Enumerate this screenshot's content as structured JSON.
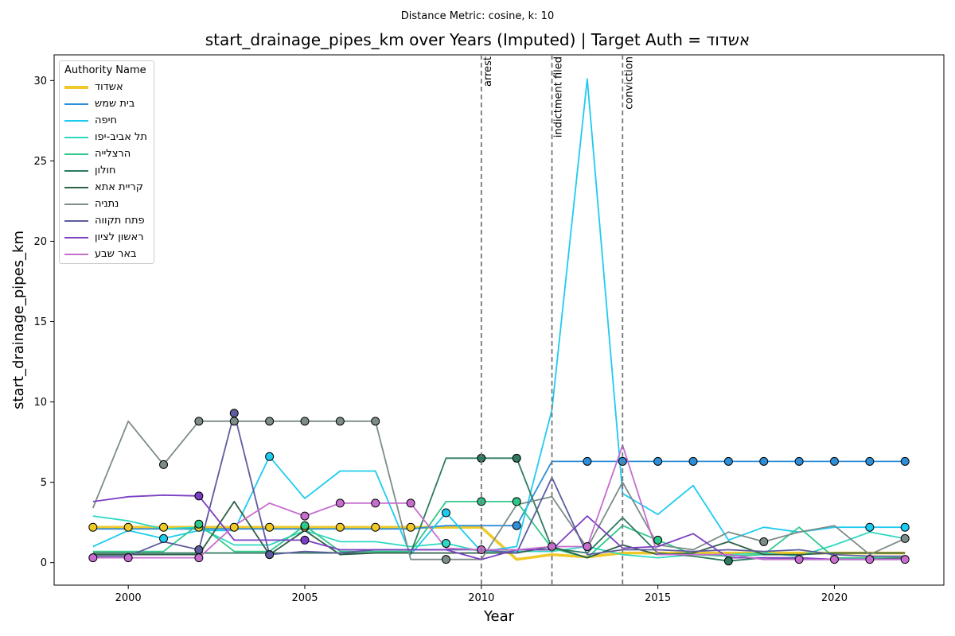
{
  "suptitle": "Distance Metric: cosine, k: 10",
  "title": "start_drainage_pipes_km over Years (Imputed) | Target Auth = אשדוד",
  "legend_title": "Authority Name",
  "chart_data": {
    "type": "line",
    "xlabel": "Year",
    "ylabel": "start_drainage_pipes_km",
    "xlim": [
      1997.9,
      2023.1
    ],
    "ylim": [
      -1.4,
      31.6
    ],
    "xticks": [
      2000,
      2005,
      2010,
      2015,
      2020
    ],
    "yticks": [
      0,
      5,
      10,
      15,
      20,
      25,
      30
    ],
    "grid": false,
    "legend_position": "upper-left",
    "events": [
      {
        "year": 2010,
        "label": "arrest"
      },
      {
        "year": 2012,
        "label": "indictment filed"
      },
      {
        "year": 2014,
        "label": "conviction"
      }
    ],
    "x": [
      1999,
      2000,
      2001,
      2002,
      2003,
      2004,
      2005,
      2006,
      2007,
      2008,
      2009,
      2010,
      2011,
      2012,
      2013,
      2014,
      2015,
      2016,
      2017,
      2018,
      2019,
      2020,
      2021,
      2022
    ],
    "series": [
      {
        "name": "אשדוד",
        "color": "#f0c929",
        "target": true,
        "values": [
          2.2,
          2.2,
          2.2,
          2.2,
          2.2,
          2.2,
          2.2,
          2.2,
          2.2,
          2.2,
          2.2,
          2.2,
          0.2,
          0.5,
          0.35,
          0.6,
          0.6,
          0.6,
          0.6,
          0.6,
          0.6,
          0.6,
          0.6,
          0.6
        ],
        "markers": [
          1999,
          2000,
          2001,
          2002,
          2003,
          2004,
          2005,
          2006,
          2007,
          2008
        ]
      },
      {
        "name": "בית שמש",
        "color": "#2e8fd8",
        "values": [
          2.1,
          2.1,
          2.1,
          2.1,
          2.1,
          2.1,
          2.1,
          2.1,
          2.1,
          2.1,
          2.3,
          2.3,
          2.3,
          6.3,
          6.3,
          6.3,
          6.3,
          6.3,
          6.3,
          6.3,
          6.3,
          6.3,
          6.3,
          6.3
        ],
        "markers": [
          2011,
          2013,
          2014,
          2015,
          2016,
          2017,
          2018,
          2019,
          2020,
          2021,
          2022
        ]
      },
      {
        "name": "חיפה",
        "color": "#1ecbf0",
        "values": [
          1.0,
          2.0,
          1.5,
          2.0,
          2.0,
          6.6,
          4.0,
          5.7,
          5.7,
          0.5,
          3.1,
          0.7,
          1.0,
          9.5,
          30.1,
          4.3,
          3.0,
          4.8,
          1.4,
          2.2,
          1.9,
          2.2,
          2.2,
          2.2
        ],
        "markers": [
          2001,
          2004,
          2009,
          2021,
          2022
        ]
      },
      {
        "name": "תל אביב-יפו",
        "color": "#2dd8c0",
        "values": [
          2.9,
          2.6,
          2.1,
          2.2,
          1.1,
          1.1,
          2.0,
          1.3,
          1.3,
          1.0,
          1.2,
          0.7,
          0.7,
          0.7,
          1.0,
          0.5,
          0.3,
          0.5,
          0.5,
          0.6,
          0.4,
          1.1,
          1.9,
          1.5
        ],
        "markers": [
          2009
        ]
      },
      {
        "name": "הרצלייה",
        "color": "#2ec98a",
        "values": [
          0.7,
          0.7,
          0.7,
          2.4,
          0.7,
          0.7,
          2.3,
          0.7,
          0.7,
          0.7,
          3.8,
          3.8,
          3.8,
          0.9,
          0.3,
          2.3,
          1.4,
          0.5,
          0.4,
          0.5,
          2.2,
          0.3,
          0.3,
          0.3
        ],
        "markers": [
          2002,
          2005,
          2010,
          2011,
          2015
        ]
      },
      {
        "name": "חולון",
        "color": "#2e7a5e",
        "values": [
          0.6,
          0.6,
          0.6,
          0.6,
          0.6,
          0.6,
          0.6,
          0.6,
          0.6,
          0.6,
          6.5,
          6.5,
          6.5,
          0.9,
          0.6,
          2.8,
          0.6,
          0.4,
          0.1,
          0.3,
          0.2,
          0.2,
          0.2,
          0.3
        ],
        "markers": [
          2010,
          2011,
          2017
        ]
      },
      {
        "name": "קריית אתא",
        "color": "#2f6148",
        "values": [
          0.5,
          0.5,
          0.5,
          0.5,
          3.8,
          0.5,
          2.0,
          0.5,
          0.6,
          0.6,
          0.6,
          0.6,
          0.6,
          1.0,
          0.3,
          1.1,
          0.5,
          0.6,
          1.3,
          0.5,
          0.5,
          0.6,
          0.6,
          0.6
        ],
        "markers": []
      },
      {
        "name": "נתניה",
        "color": "#7c8c88",
        "values": [
          3.4,
          8.8,
          6.1,
          8.8,
          8.8,
          8.8,
          8.8,
          8.8,
          8.8,
          0.2,
          0.2,
          0.2,
          3.6,
          4.1,
          0.9,
          5.0,
          1.1,
          0.8,
          1.9,
          1.3,
          1.9,
          2.3,
          0.5,
          1.5
        ],
        "markers": [
          2001,
          2002,
          2003,
          2004,
          2005,
          2006,
          2007,
          2009,
          2018,
          2022
        ]
      },
      {
        "name": "פתח תקווה",
        "color": "#5c5c9e",
        "values": [
          0.4,
          0.4,
          1.3,
          0.8,
          9.3,
          0.5,
          0.7,
          0.6,
          0.8,
          0.8,
          0.8,
          0.8,
          0.6,
          5.3,
          0.5,
          0.8,
          0.8,
          0.7,
          0.8,
          0.7,
          0.8,
          0.5,
          0.4,
          0.4
        ],
        "markers": [
          2002,
          2003,
          2004
        ]
      },
      {
        "name": "ראשון לציון",
        "color": "#7b3fc4",
        "values": [
          3.8,
          4.1,
          4.2,
          4.15,
          1.4,
          1.4,
          1.4,
          0.8,
          0.8,
          0.8,
          0.8,
          0.2,
          0.8,
          0.8,
          2.9,
          0.9,
          1.0,
          1.8,
          0.3,
          0.3,
          0.3,
          0.2,
          0.2,
          0.2
        ],
        "markers": [
          2002,
          2005
        ]
      },
      {
        "name": "באר שבע",
        "color": "#c76dcf",
        "values": [
          0.3,
          0.3,
          0.3,
          0.3,
          2.3,
          3.7,
          2.9,
          3.7,
          3.7,
          3.7,
          0.9,
          0.8,
          0.8,
          1.0,
          1.0,
          7.3,
          0.5,
          0.5,
          0.5,
          0.2,
          0.2,
          0.2,
          0.2,
          0.2
        ],
        "markers": [
          1999,
          2000,
          2002,
          2005,
          2006,
          2007,
          2008,
          2010,
          2012,
          2013,
          2019,
          2020,
          2021,
          2022
        ]
      }
    ]
  }
}
